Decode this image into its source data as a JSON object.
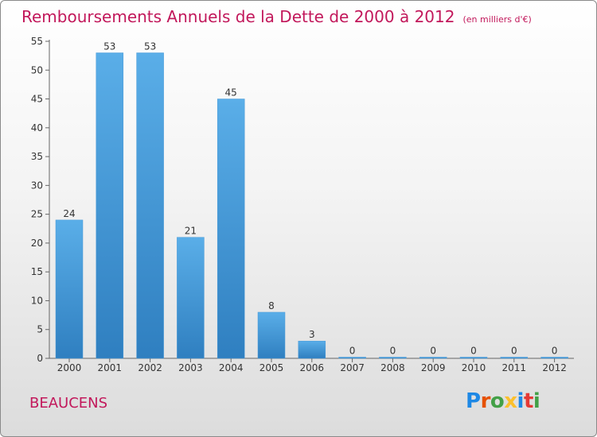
{
  "title": "Remboursements Annuels de la Dette de 2000 à 2012",
  "subtitle": "(en milliers d'€)",
  "commune": "BEAUCENS",
  "logo": {
    "letters": [
      {
        "ch": "P",
        "color": "#1e88e5"
      },
      {
        "ch": "r",
        "color": "#e65100"
      },
      {
        "ch": "o",
        "color": "#43a047"
      },
      {
        "ch": "x",
        "color": "#fbc02d"
      },
      {
        "ch": "i",
        "color": "#1e88e5"
      },
      {
        "ch": "t",
        "color": "#e53935"
      },
      {
        "ch": "i",
        "color": "#43a047"
      }
    ]
  },
  "chart_data": {
    "type": "bar",
    "title": "Remboursements Annuels de la Dette de 2000 à 2012",
    "subtitle": "(en milliers d'€)",
    "categories": [
      "2000",
      "2001",
      "2002",
      "2003",
      "2004",
      "2005",
      "2006",
      "2007",
      "2008",
      "2009",
      "2010",
      "2011",
      "2012"
    ],
    "values": [
      24,
      53,
      53,
      21,
      45,
      8,
      3,
      0,
      0,
      0,
      0,
      0,
      0
    ],
    "ylim": [
      0,
      55
    ],
    "yticks": [
      0,
      5,
      10,
      15,
      20,
      25,
      30,
      35,
      40,
      45,
      50,
      55
    ],
    "grid": false,
    "bar_color_top": "#5aaee8",
    "bar_color_bottom": "#2f7fc0"
  }
}
